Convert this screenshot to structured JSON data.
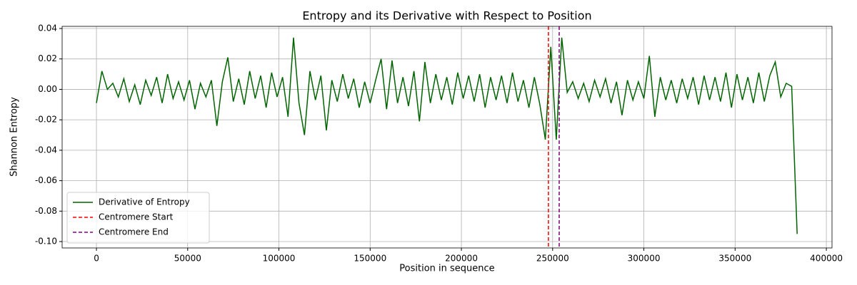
{
  "chart_data": {
    "type": "line",
    "title": "Entropy and its Derivative with Respect to Position",
    "xlabel": "Position in sequence",
    "ylabel": "Shannon Entropy",
    "x": [
      0,
      3000,
      6000,
      9000,
      12000,
      15000,
      18000,
      21000,
      24000,
      27000,
      30000,
      33000,
      36000,
      39000,
      42000,
      45000,
      48000,
      51000,
      54000,
      57000,
      60000,
      63000,
      66000,
      69000,
      72000,
      75000,
      78000,
      81000,
      84000,
      87000,
      90000,
      93000,
      96000,
      99000,
      102000,
      105000,
      108000,
      111000,
      114000,
      117000,
      120000,
      123000,
      126000,
      129000,
      132000,
      135000,
      138000,
      141000,
      144000,
      147000,
      150000,
      153000,
      156000,
      159000,
      162000,
      165000,
      168000,
      171000,
      174000,
      177000,
      180000,
      183000,
      186000,
      189000,
      192000,
      195000,
      198000,
      201000,
      204000,
      207000,
      210000,
      213000,
      216000,
      219000,
      222000,
      225000,
      228000,
      231000,
      234000,
      237000,
      240000,
      243000,
      246000,
      249000,
      252000,
      255000,
      258000,
      261000,
      264000,
      267000,
      270000,
      273000,
      276000,
      279000,
      282000,
      285000,
      288000,
      291000,
      294000,
      297000,
      300000,
      303000,
      306000,
      309000,
      312000,
      315000,
      318000,
      321000,
      324000,
      327000,
      330000,
      333000,
      336000,
      339000,
      342000,
      345000,
      348000,
      351000,
      354000,
      357000,
      360000,
      363000,
      366000,
      369000,
      372000,
      375000,
      378000,
      381000,
      384000
    ],
    "series": [
      {
        "name": "Derivative of Entropy",
        "color": "#006400",
        "values": [
          -0.009,
          0.012,
          0.0,
          0.004,
          -0.005,
          0.007,
          -0.008,
          0.003,
          -0.01,
          0.006,
          -0.004,
          0.008,
          -0.009,
          0.01,
          -0.006,
          0.005,
          -0.007,
          0.006,
          -0.013,
          0.004,
          -0.005,
          0.006,
          -0.024,
          0.005,
          0.021,
          -0.008,
          0.007,
          -0.01,
          0.012,
          -0.006,
          0.009,
          -0.012,
          0.011,
          -0.005,
          0.008,
          -0.018,
          0.034,
          -0.009,
          -0.03,
          0.012,
          -0.007,
          0.009,
          -0.027,
          0.006,
          -0.008,
          0.01,
          -0.006,
          0.007,
          -0.012,
          0.005,
          -0.009,
          0.006,
          0.02,
          -0.013,
          0.019,
          -0.009,
          0.008,
          -0.011,
          0.012,
          -0.021,
          0.018,
          -0.009,
          0.01,
          -0.007,
          0.008,
          -0.01,
          0.011,
          -0.006,
          0.009,
          -0.008,
          0.01,
          -0.012,
          0.008,
          -0.007,
          0.009,
          -0.009,
          0.011,
          -0.008,
          0.006,
          -0.012,
          0.008,
          -0.01,
          -0.033,
          0.028,
          -0.033,
          0.034,
          -0.002,
          0.005,
          -0.006,
          0.004,
          -0.008,
          0.006,
          -0.005,
          0.007,
          -0.009,
          0.005,
          -0.017,
          0.006,
          -0.007,
          0.005,
          -0.006,
          0.022,
          -0.018,
          0.008,
          -0.007,
          0.006,
          -0.009,
          0.007,
          -0.006,
          0.008,
          -0.01,
          0.009,
          -0.007,
          0.008,
          -0.008,
          0.011,
          -0.012,
          0.01,
          -0.007,
          0.008,
          -0.009,
          0.011,
          -0.008,
          0.009,
          0.018,
          -0.005,
          0.004,
          0.002,
          -0.095
        ]
      }
    ],
    "vlines": [
      {
        "name": "Centromere Start",
        "x": 247700,
        "color": "#ff0000"
      },
      {
        "name": "Centromere End",
        "x": 253600,
        "color": "#800080"
      }
    ],
    "xlim": [
      -18800,
      403100
    ],
    "ylim": [
      -0.1042,
      0.0414
    ],
    "xticks": [
      0,
      50000,
      100000,
      150000,
      200000,
      250000,
      300000,
      350000,
      400000
    ],
    "yticks": [
      {
        "value": -0.1,
        "label": "-0.10"
      },
      {
        "value": -0.08,
        "label": "-0.08"
      },
      {
        "value": -0.06,
        "label": "-0.06"
      },
      {
        "value": -0.04,
        "label": "-0.04"
      },
      {
        "value": -0.02,
        "label": "-0.02"
      },
      {
        "value": 0,
        "label": "0.00"
      },
      {
        "value": 0.02,
        "label": "0.02"
      },
      {
        "value": 0.04,
        "label": "0.04"
      }
    ],
    "grid": true,
    "legend": "lower left"
  }
}
